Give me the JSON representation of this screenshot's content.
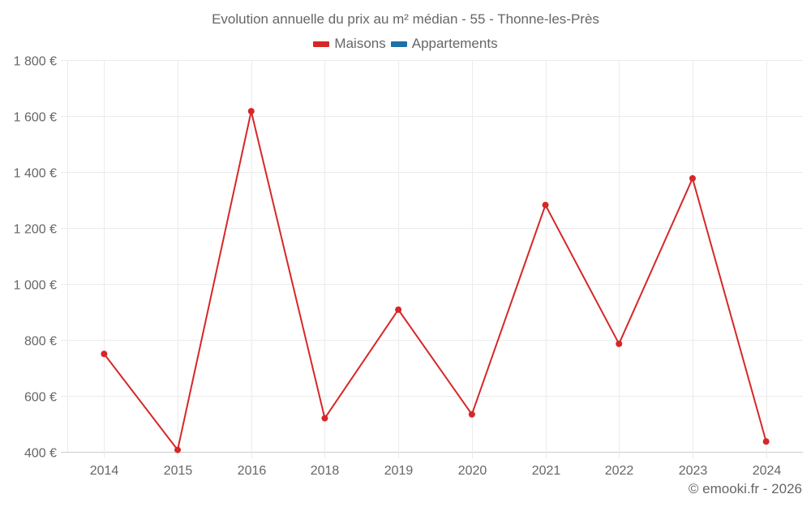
{
  "chart_data": {
    "type": "line",
    "title": "Evolution annuelle du prix au m² médian - 55 - Thonne-les-Près",
    "xlabel": "",
    "ylabel": "",
    "categories": [
      "2014",
      "2015",
      "2016",
      "2018",
      "2019",
      "2020",
      "2021",
      "2022",
      "2023",
      "2024"
    ],
    "series": [
      {
        "name": "Maisons",
        "color": "#d62728",
        "values": [
          750,
          407,
          1617,
          520,
          908,
          534,
          1282,
          786,
          1377,
          437
        ]
      },
      {
        "name": "Appartements",
        "color": "#1f6fa8",
        "values": []
      }
    ],
    "ylim": [
      400,
      1800
    ],
    "yticks": [
      400,
      600,
      800,
      1000,
      1200,
      1400,
      1600,
      1800
    ],
    "ytick_labels": [
      "400 €",
      "600 €",
      "800 €",
      "1 000 €",
      "1 200 €",
      "1 400 €",
      "1 600 €",
      "1 800 €"
    ],
    "grid": true,
    "legend_position": "top"
  },
  "title": "Evolution annuelle du prix au m² médian - 55 - Thonne-les-Près",
  "legend": [
    {
      "label": "Maisons",
      "color": "#d62728"
    },
    {
      "label": "Appartements",
      "color": "#1f6fa8"
    }
  ],
  "credit": "© emooki.fr - 2026"
}
